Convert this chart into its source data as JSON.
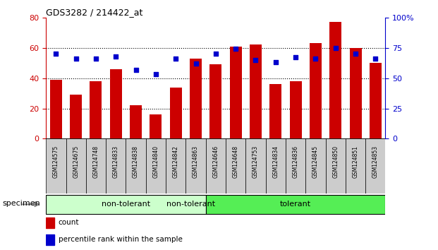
{
  "title": "GDS3282 / 214422_at",
  "categories": [
    "GSM124575",
    "GSM124675",
    "GSM124748",
    "GSM124833",
    "GSM124838",
    "GSM124840",
    "GSM124842",
    "GSM124863",
    "GSM124646",
    "GSM124648",
    "GSM124753",
    "GSM124834",
    "GSM124836",
    "GSM124845",
    "GSM124850",
    "GSM124851",
    "GSM124853"
  ],
  "count_values": [
    39,
    29,
    38,
    46,
    22,
    16,
    34,
    53,
    49,
    61,
    62,
    36,
    38,
    63,
    77,
    60,
    50
  ],
  "percentile_values": [
    70,
    66,
    66,
    68,
    57,
    53,
    66,
    62,
    70,
    74,
    65,
    63,
    67,
    66,
    75,
    70,
    66
  ],
  "non_tolerant_count": 8,
  "tolerant_count": 9,
  "bar_color": "#CC0000",
  "dot_color": "#0000CC",
  "left_ylim": [
    0,
    80
  ],
  "right_ylim": [
    0,
    100
  ],
  "left_yticks": [
    0,
    20,
    40,
    60,
    80
  ],
  "right_yticks": [
    0,
    25,
    50,
    75,
    100
  ],
  "right_yticklabels": [
    "0",
    "25",
    "50",
    "75",
    "100%"
  ],
  "non_tolerant_color": "#CCFFCC",
  "tolerant_color": "#55EE55",
  "xtick_bg": "#CCCCCC",
  "grid_linestyle": ":",
  "grid_linewidth": 0.8
}
